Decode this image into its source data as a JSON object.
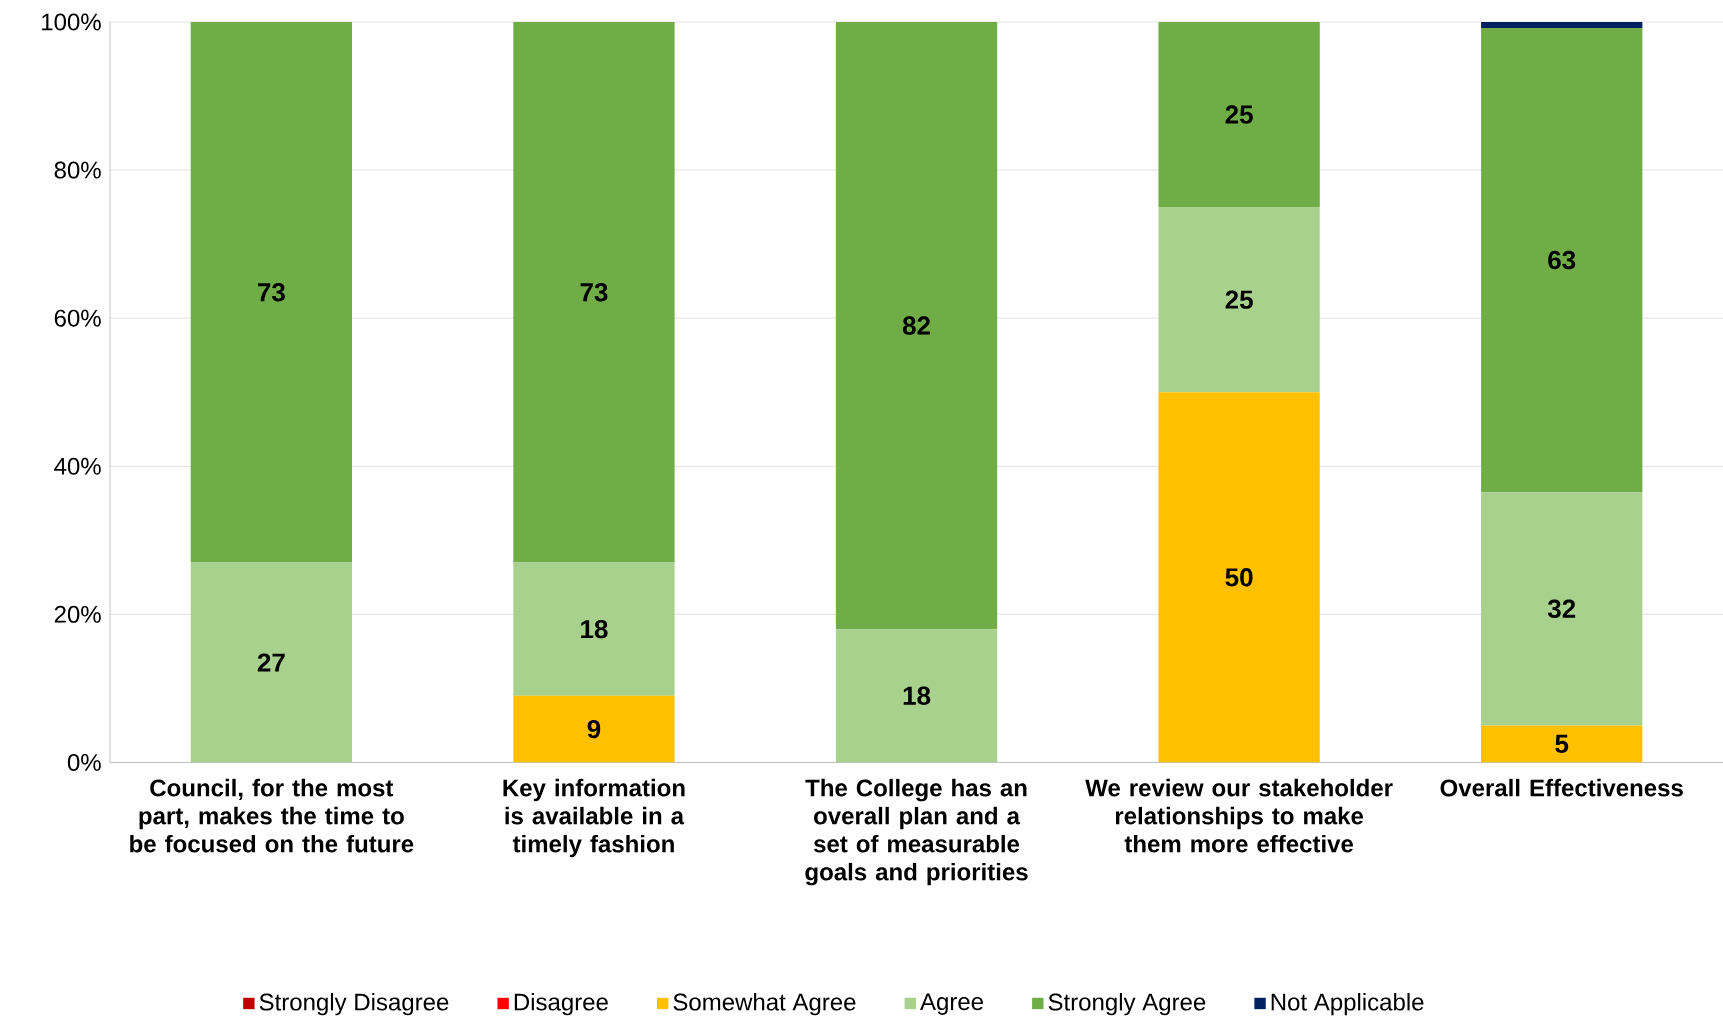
{
  "chart_data": {
    "type": "bar",
    "stacked": true,
    "categories": [
      "Council, for the most part, makes the time to be focused on the future",
      "Key information is available in a timely fashion",
      "The College has an overall plan and a set of measurable goals and priorities",
      "We review our stakeholder relationships to make them more effective",
      "Overall Effectiveness"
    ],
    "series": [
      {
        "name": "Strongly Disagree",
        "color": "#c00000",
        "values": [
          0,
          0,
          0,
          0,
          0
        ],
        "value_labels": [
          null,
          null,
          null,
          null,
          null
        ]
      },
      {
        "name": "Disagree",
        "color": "#ff0000",
        "values": [
          0,
          0,
          0,
          0,
          0
        ],
        "value_labels": [
          null,
          null,
          null,
          null,
          null
        ]
      },
      {
        "name": "Somewhat Agree",
        "color": "#ffc000",
        "values": [
          0,
          9,
          0,
          50,
          5
        ],
        "value_labels": [
          null,
          "9",
          null,
          "50",
          "5"
        ]
      },
      {
        "name": "Agree",
        "color": "#a9d18e",
        "values": [
          27,
          18,
          18,
          25,
          31.5
        ],
        "value_labels": [
          "27",
          "18",
          "18",
          "25",
          "32"
        ]
      },
      {
        "name": "Strongly Agree",
        "color": "#70ad47",
        "values": [
          73,
          73,
          82,
          25,
          62.7
        ],
        "value_labels": [
          "73",
          "73",
          "82",
          "25",
          "63"
        ]
      },
      {
        "name": "Not Applicable",
        "color": "#002060",
        "values": [
          0,
          0,
          0,
          0,
          0.8
        ],
        "value_labels": [
          null,
          null,
          null,
          null,
          null
        ]
      }
    ],
    "ylim": [
      0,
      100
    ],
    "yticks": [
      {
        "value": 0,
        "label": "0%"
      },
      {
        "value": 20,
        "label": "20%"
      },
      {
        "value": 40,
        "label": "40%"
      },
      {
        "value": 60,
        "label": "60%"
      },
      {
        "value": 80,
        "label": "80%"
      },
      {
        "value": 100,
        "label": "100%"
      }
    ],
    "grid": "y",
    "legend": "bottom"
  }
}
